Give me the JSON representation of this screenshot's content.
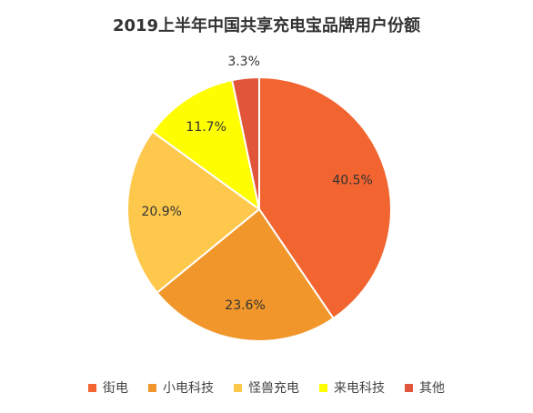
{
  "chart_data": {
    "type": "pie",
    "title": "2019上半年中国共享充电宝品牌用户份额",
    "categories": [
      "街电",
      "小电科技",
      "怪兽充电",
      "来电科技",
      "其他"
    ],
    "values": [
      40.5,
      23.6,
      20.9,
      11.7,
      3.3
    ],
    "value_labels": [
      "40.5%",
      "23.6%",
      "20.9%",
      "11.7%",
      "3.3%"
    ],
    "colors": [
      "#f26430",
      "#f1962a",
      "#fdc84c",
      "#fffd02",
      "#e1553a"
    ],
    "legend_placement": "bottom",
    "start": "12 o'clock",
    "direction": "clockwise"
  }
}
